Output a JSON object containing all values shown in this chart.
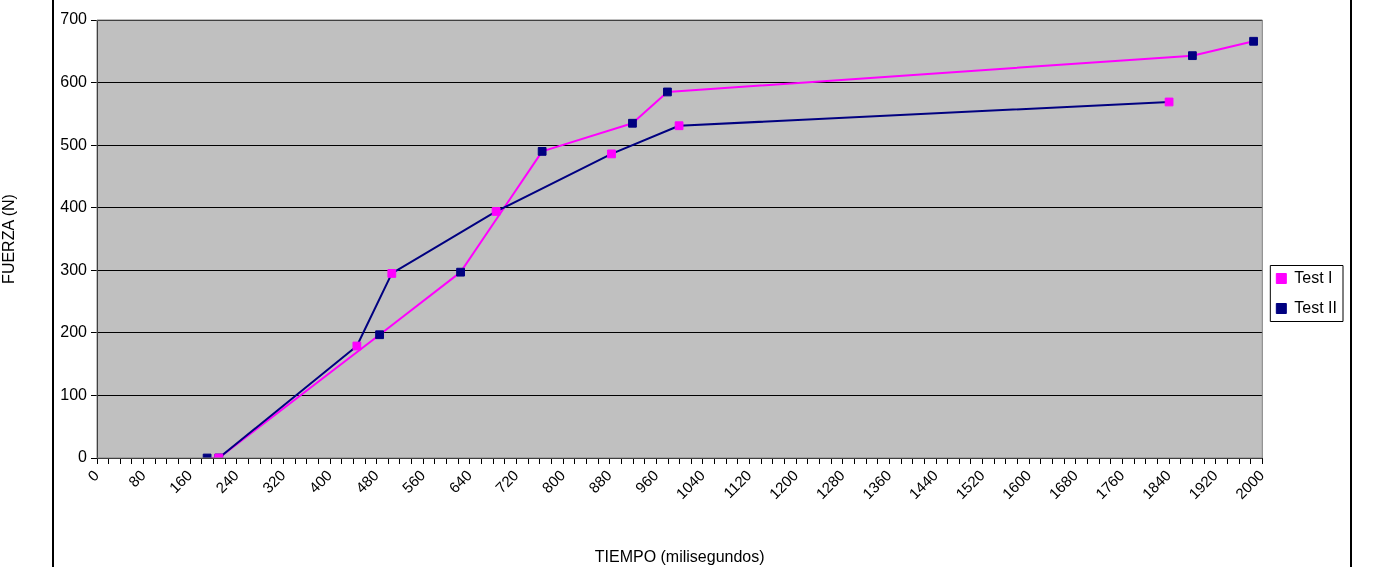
{
  "chart_data": {
    "type": "line",
    "xlabel": "TIEMPO (milisegundos)",
    "ylabel": "FUERZA (N)",
    "series": [
      {
        "name": "Test I",
        "color": "#000080",
        "colors": [
          "#ff00ff",
          "#ff00ff",
          "#ff00ff",
          "#ff00ff",
          "#ff00ff",
          "#ff00ff",
          "#ff00ff"
        ],
        "x": [
          209,
          446,
          506,
          685,
          883,
          999,
          1840
        ],
        "values": [
          0,
          179,
          295,
          394,
          486,
          531,
          569
        ]
      },
      {
        "name": "Test II",
        "color": "#ff00ff",
        "colors": [
          "#000080",
          "#000080",
          "#000080",
          "#000080",
          "#000080",
          "#000080",
          "#000080",
          "#000080",
          "#000080"
        ],
        "x": [
          189,
          209,
          485,
          624,
          764,
          919,
          979,
          1880,
          1985
        ],
        "values": [
          0,
          0,
          197,
          297,
          490,
          535,
          585,
          643,
          666
        ]
      }
    ],
    "xlim": [
      0,
      2000
    ],
    "xticks": [
      0,
      {
        "value": 20,
        "label": null
      },
      {
        "value": 40,
        "label": null
      },
      {
        "value": 60,
        "label": null
      },
      80,
      {
        "value": 100,
        "label": null
      },
      {
        "value": 120,
        "label": null
      },
      {
        "value": 140,
        "label": null
      },
      160,
      {
        "value": 180,
        "label": null
      },
      {
        "value": 200,
        "label": null
      },
      {
        "value": 220,
        "label": null
      },
      240,
      {
        "value": 260,
        "label": null
      },
      {
        "value": 280,
        "label": null
      },
      {
        "value": 300,
        "label": null
      },
      320,
      {
        "value": 340,
        "label": null
      },
      {
        "value": 360,
        "label": null
      },
      {
        "value": 380,
        "label": null
      },
      400,
      {
        "value": 420,
        "label": null
      },
      {
        "value": 440,
        "label": null
      },
      {
        "value": 460,
        "label": null
      },
      480,
      {
        "value": 500,
        "label": null
      },
      {
        "value": 520,
        "label": null
      },
      {
        "value": 540,
        "label": null
      },
      560,
      {
        "value": 580,
        "label": null
      },
      {
        "value": 600,
        "label": null
      },
      {
        "value": 620,
        "label": null
      },
      640,
      {
        "value": 660,
        "label": null
      },
      {
        "value": 680,
        "label": null
      },
      {
        "value": 700,
        "label": null
      },
      720,
      {
        "value": 740,
        "label": null
      },
      {
        "value": 760,
        "label": null
      },
      {
        "value": 780,
        "label": null
      },
      800,
      {
        "value": 820,
        "label": null
      },
      {
        "value": 840,
        "label": null
      },
      {
        "value": 860,
        "label": null
      },
      880,
      {
        "value": 900,
        "label": null
      },
      {
        "value": 920,
        "label": null
      },
      {
        "value": 940,
        "label": null
      },
      960,
      {
        "value": 980,
        "label": null
      },
      {
        "value": 1000,
        "label": null
      },
      {
        "value": 1020,
        "label": null
      },
      1040,
      {
        "value": 1060,
        "label": null
      },
      {
        "value": 1080,
        "label": null
      },
      {
        "value": 1100,
        "label": null
      },
      1120,
      {
        "value": 1140,
        "label": null
      },
      {
        "value": 1160,
        "label": null
      },
      {
        "value": 1180,
        "label": null
      },
      1200,
      {
        "value": 1220,
        "label": null
      },
      {
        "value": 1240,
        "label": null
      },
      {
        "value": 1260,
        "label": null
      },
      1280,
      {
        "value": 1300,
        "label": null
      },
      {
        "value": 1320,
        "label": null
      },
      {
        "value": 1340,
        "label": null
      },
      1360,
      {
        "value": 1380,
        "label": null
      },
      {
        "value": 1400,
        "label": null
      },
      {
        "value": 1420,
        "label": null
      },
      1440,
      {
        "value": 1460,
        "label": null
      },
      {
        "value": 1480,
        "label": null
      },
      {
        "value": 1500,
        "label": null
      },
      1520,
      {
        "value": 1540,
        "label": null
      },
      {
        "value": 1560,
        "label": null
      },
      {
        "value": 1580,
        "label": null
      },
      1600,
      {
        "value": 1620,
        "label": null
      },
      {
        "value": 1640,
        "label": null
      },
      {
        "value": 1660,
        "label": null
      },
      1680,
      {
        "value": 1700,
        "label": null
      },
      {
        "value": 1720,
        "label": null
      },
      {
        "value": 1740,
        "label": null
      },
      1760,
      {
        "value": 1780,
        "label": null
      },
      {
        "value": 1800,
        "label": null
      },
      {
        "value": 1820,
        "label": null
      },
      1840,
      {
        "value": 1860,
        "label": null
      },
      {
        "value": 1880,
        "label": null
      },
      {
        "value": 1900,
        "label": null
      },
      1920,
      {
        "value": 1940,
        "label": null
      },
      {
        "value": 1960,
        "label": null
      },
      {
        "value": 1980,
        "label": null
      },
      2000
    ],
    "ylim": [
      0,
      700
    ],
    "yticks": [
      0,
      100,
      200,
      300,
      400,
      500,
      600,
      700
    ],
    "grid": "y",
    "legend": "right",
    "marker": "square",
    "line_style": "solid"
  }
}
